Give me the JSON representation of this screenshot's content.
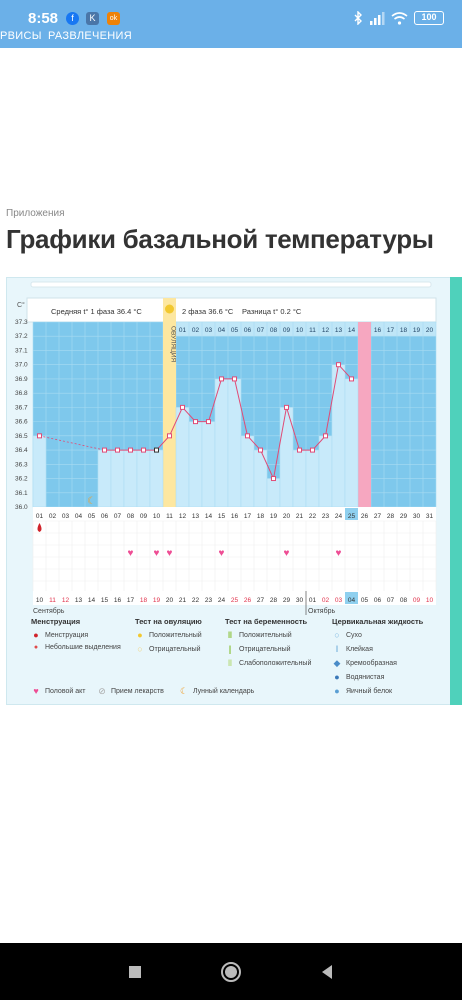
{
  "status_bar": {
    "time": "8:58",
    "battery": "100",
    "apps": [
      {
        "name": "facebook-icon",
        "glyph": "f",
        "color": "#1877f2"
      },
      {
        "name": "vk-icon",
        "glyph": "K",
        "color": "#4a76a8"
      },
      {
        "name": "ok-icon",
        "glyph": "ok",
        "color": "#ee8208"
      }
    ]
  },
  "top_nav": {
    "item1": "РВИСЫ",
    "item2": "РАЗВЛЕЧЕНИЯ"
  },
  "breadcrumb": "Приложения",
  "page_title": "Графики базальной температуры",
  "chart_data": {
    "type": "line",
    "y_unit": "C°",
    "ylim": [
      36.0,
      37.3
    ],
    "y_ticks": [
      "37.3",
      "37.2",
      "37.1",
      "37.0",
      "36.9",
      "36.8",
      "36.7",
      "36.6",
      "36.5",
      "36.4",
      "36.3",
      "36.2",
      "36.1",
      "36.0"
    ],
    "phase1_label": "Средняя t° 1 фаза",
    "phase1_value": "36.4 °C",
    "phase2_label": "2 фаза",
    "phase2_value": "36.6 °C",
    "diff_label": "Разница t°",
    "diff_value": "0.2 °C",
    "ovulation_label": "ОВУЛЯЦИЯ",
    "phase2_days": [
      "01",
      "02",
      "03",
      "04",
      "05",
      "06",
      "07",
      "08",
      "09",
      "10",
      "11",
      "12",
      "13",
      "14",
      "15",
      "16",
      "17",
      "18",
      "19",
      "20"
    ],
    "cycle_days": [
      "01",
      "02",
      "03",
      "04",
      "05",
      "06",
      "07",
      "08",
      "09",
      "10",
      "11",
      "12",
      "13",
      "14",
      "15",
      "16",
      "17",
      "18",
      "19",
      "20",
      "21",
      "22",
      "23",
      "24",
      "25",
      "26",
      "27",
      "28",
      "29",
      "30",
      "31"
    ],
    "temperatures": [
      36.5,
      null,
      null,
      null,
      null,
      36.4,
      36.4,
      36.4,
      36.4,
      36.4,
      36.5,
      36.7,
      36.6,
      36.6,
      36.9,
      36.9,
      36.5,
      36.4,
      36.2,
      36.7,
      36.4,
      36.4,
      36.5,
      37.0,
      36.9
    ],
    "calendar_dates": [
      "10",
      "11",
      "12",
      "13",
      "14",
      "15",
      "16",
      "17",
      "18",
      "19",
      "20",
      "21",
      "22",
      "23",
      "24",
      "25",
      "26",
      "27",
      "28",
      "29",
      "30",
      "01",
      "02",
      "03",
      "04",
      "05",
      "06",
      "07",
      "08",
      "09",
      "10"
    ],
    "red_date_idx": [
      1,
      2,
      8,
      9,
      15,
      16,
      22,
      23,
      29,
      30
    ],
    "month1": "Сентябрь",
    "month2": "Октябрь",
    "heart_days": [
      8,
      10,
      11,
      15,
      20,
      24
    ],
    "menstruation_day": 1,
    "moon_day": 5
  },
  "legend": {
    "col1_title": "Менструация",
    "col1_items": [
      "Менструация",
      "Небольшие выделения"
    ],
    "col2_title": "Тест на овуляцию",
    "col2_items": [
      "Положительный",
      "Отрицательный"
    ],
    "col3_title": "Тест на беременность",
    "col3_items": [
      "Положительный",
      "Отрицательный",
      "Слабоположительный"
    ],
    "col4_title": "Цервикальная жидкость",
    "col4_items": [
      "Сухо",
      "Клейкая",
      "Кремообразная",
      "Водянистая",
      "Яичный белок"
    ],
    "bottom_items": [
      "Половой акт",
      "Прием лекарств",
      "Лунный календарь"
    ]
  },
  "colors": {
    "status_bg": "#6bb0e8",
    "chart_blue": "#7ec8ec",
    "chart_light": "#c8eafa",
    "ovulation_yellow": "#fde7a0",
    "period_pink": "#f6a7c0",
    "line_pink": "#e04b76",
    "accent_teal": "#4fd1bb"
  }
}
